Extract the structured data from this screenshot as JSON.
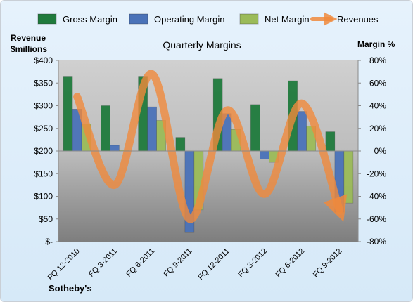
{
  "chart_data": {
    "type": "bar",
    "title": "Quarterly Margins",
    "company_label": "Sotheby's",
    "categories": [
      "FQ 12-2010",
      "FQ 3-2011",
      "FQ 6-2011",
      "FQ 9-2011",
      "FQ 12-2011",
      "FQ 3-2012",
      "FQ 6-2012",
      "FQ 9-2012"
    ],
    "series": [
      {
        "name": "Gross Margin",
        "axis": "right",
        "values": [
          66,
          40,
          66,
          12,
          64,
          41,
          62,
          17
        ],
        "color": "#1f7a3c"
      },
      {
        "name": "Operating Margin",
        "axis": "right",
        "values": [
          37,
          5,
          39,
          -72,
          33,
          -7,
          35,
          -54
        ],
        "color": "#4a72b8"
      },
      {
        "name": "Net Margin",
        "axis": "right",
        "values": [
          24,
          1,
          27,
          -52,
          19,
          -10,
          22,
          -46
        ],
        "color": "#9bbb59"
      },
      {
        "name": "Revenues",
        "type": "line",
        "axis": "left",
        "values": [
          320,
          125,
          370,
          50,
          290,
          105,
          305,
          70
        ],
        "color": "#f08a3c"
      }
    ],
    "left_axis": {
      "label_line1": "Revenue",
      "label_line2": "$millions",
      "ylim": [
        0,
        400
      ],
      "tick_labels": [
        "$-",
        "$50",
        "$100",
        "$150",
        "$200",
        "$250",
        "$300",
        "$350",
        "$400"
      ]
    },
    "right_axis": {
      "label": "Margin %",
      "ylim": [
        -80,
        80
      ],
      "tick_labels": [
        "-80%",
        "-60%",
        "-40%",
        "-20%",
        "0%",
        "20%",
        "40%",
        "60%",
        "80%"
      ]
    },
    "legend_position": "top",
    "grid": false
  }
}
